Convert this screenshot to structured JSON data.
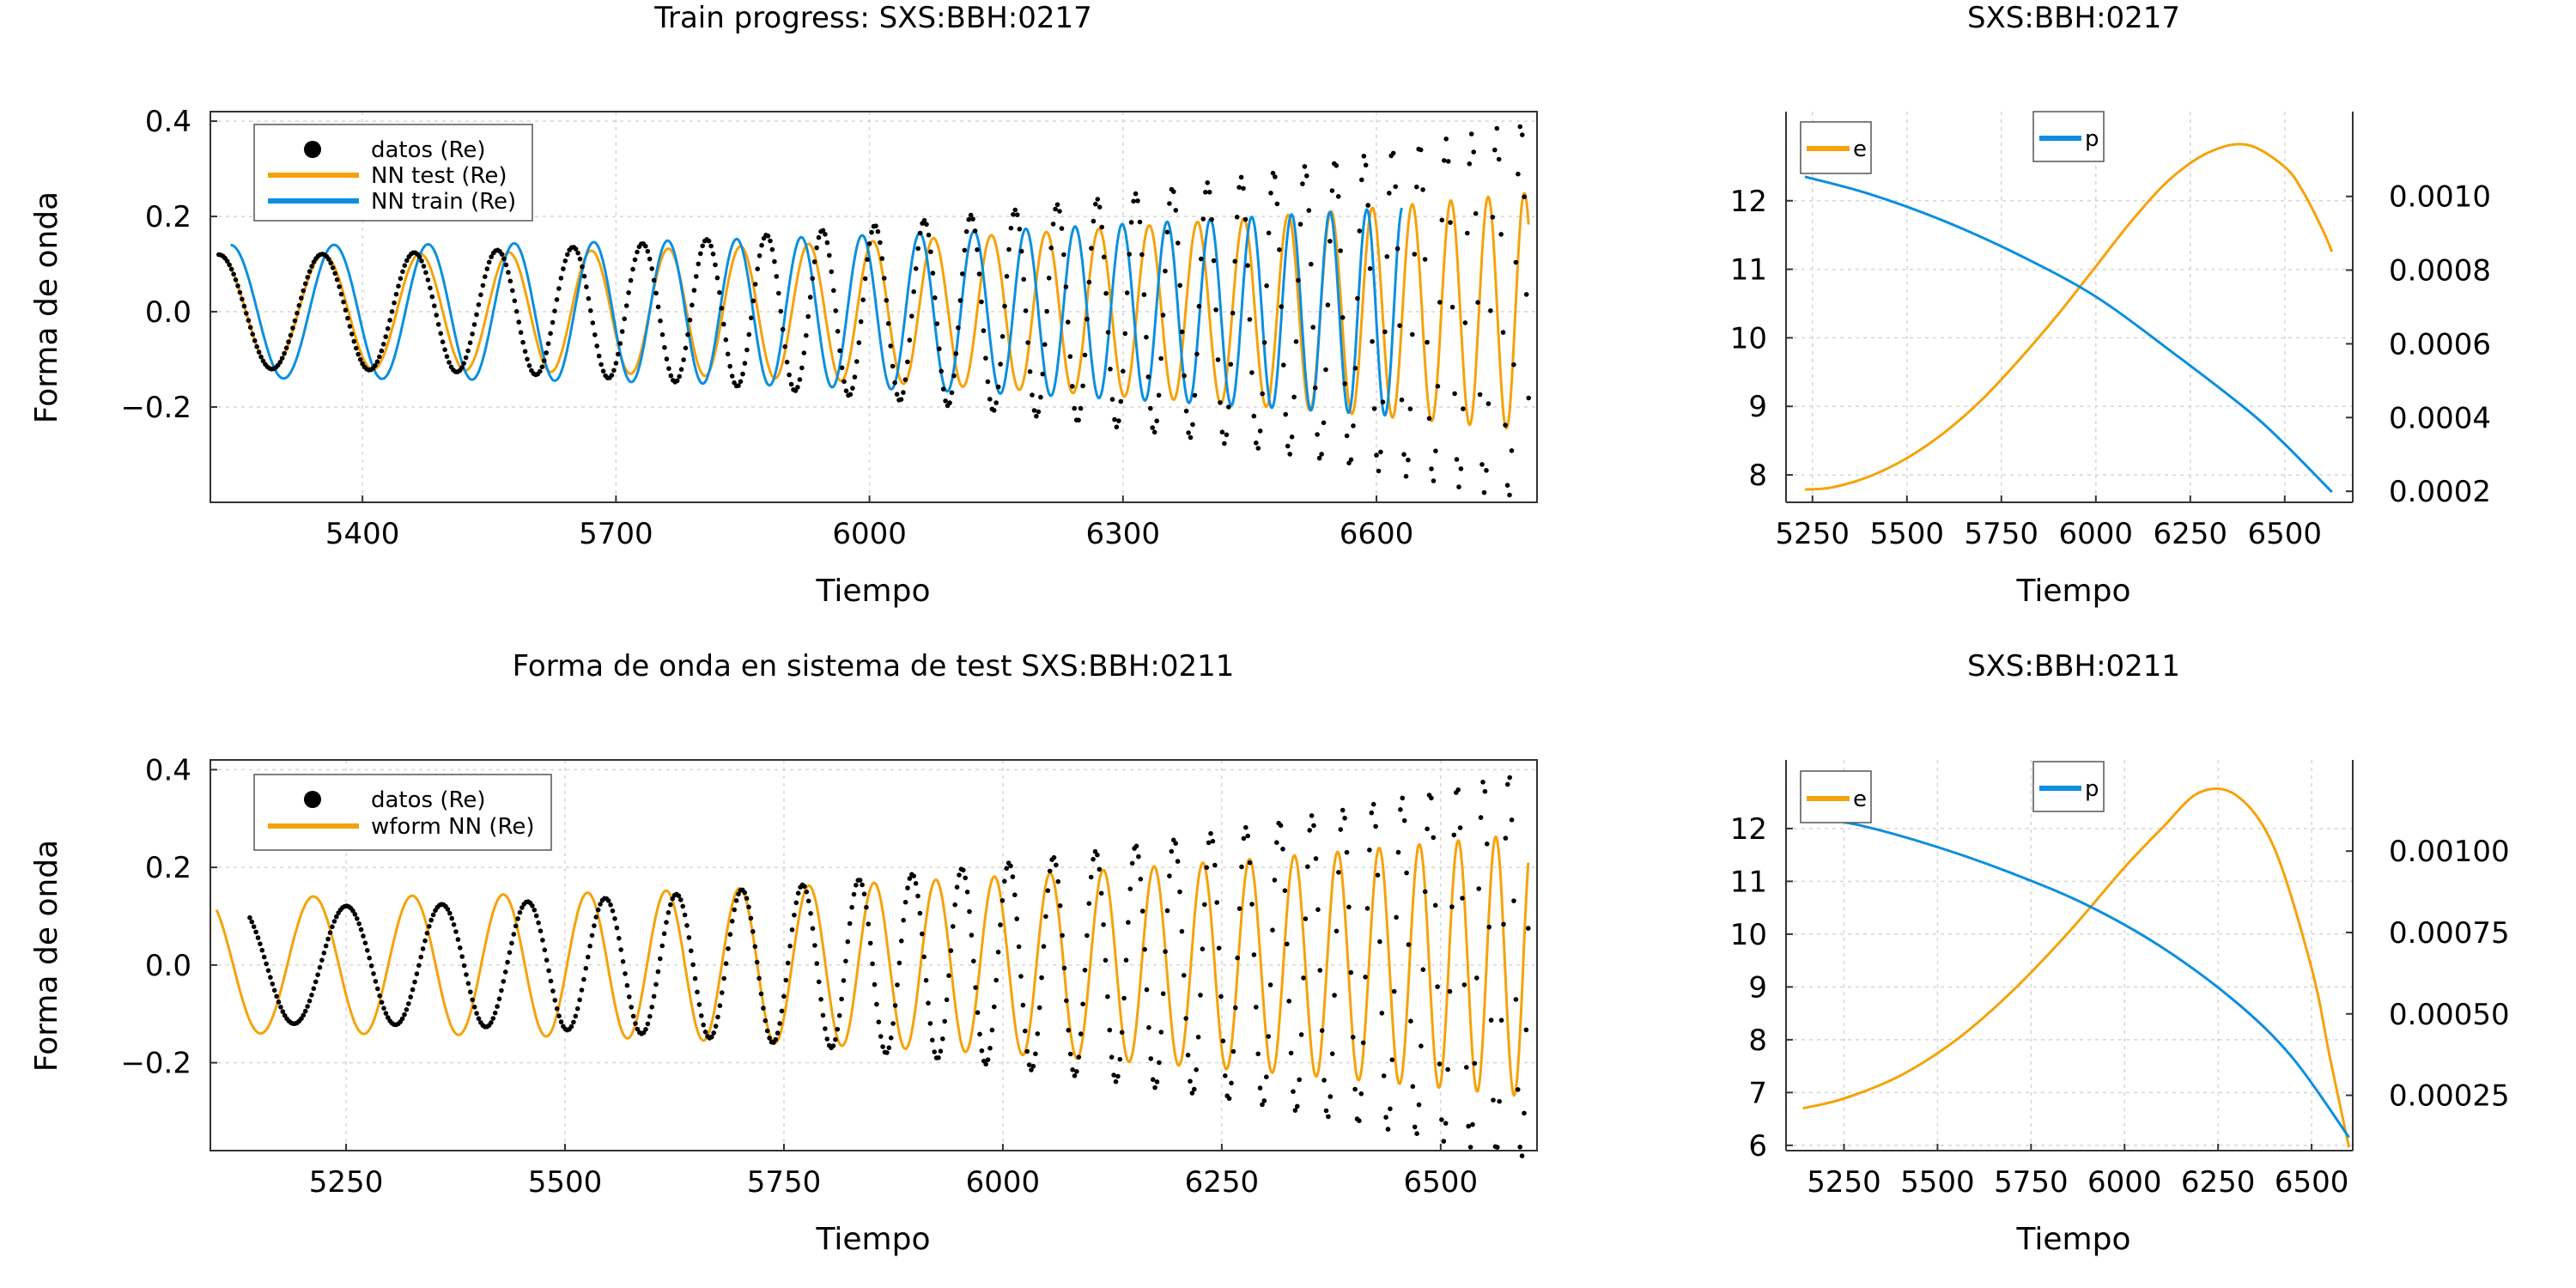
{
  "colors": {
    "datos": "#000000",
    "nn_test": "#f5a20a",
    "nn_train": "#0c8fde",
    "e": "#f5a20a",
    "p": "#0c8fde"
  },
  "chart_data": [
    {
      "type": "line",
      "title": "Train progress: SXS:BBH:0217",
      "xlabel": "Tiempo",
      "ylabel": "Forma de onda",
      "xlim": [
        5220,
        6790
      ],
      "ylim": [
        -0.4,
        0.42
      ],
      "xticks": [
        5400,
        5700,
        6000,
        6300,
        6600
      ],
      "xtick_labels": [
        "5400",
        "5700",
        "6000",
        "6300",
        "6600"
      ],
      "yticks": [
        -0.2,
        0.0,
        0.2,
        0.4
      ],
      "ytick_labels": [
        "−0.2",
        "0.0",
        "0.2",
        "0.4"
      ],
      "grid": true,
      "legend": "top-left",
      "series": [
        {
          "name": "datos (Re)",
          "kind": "scatter",
          "x_range": [
            5230,
            6780
          ],
          "phase0": 0.5,
          "period_start": 130,
          "period_end": 28,
          "amp_start": 0.12,
          "amp_end": 0.4,
          "shift": 0
        },
        {
          "name": "NN test (Re)",
          "kind": "line",
          "x_range": [
            5230,
            6780
          ],
          "phase0": 0.5,
          "period_start": 130,
          "period_end": 42,
          "amp_start": 0.12,
          "amp_end": 0.25,
          "shift": 0
        },
        {
          "name": "NN train (Re)",
          "kind": "line",
          "x_range": [
            5230,
            6630
          ],
          "phase0": 0.5,
          "period_start": 130,
          "period_end": 42,
          "amp_start": 0.14,
          "amp_end": 0.22,
          "shift": 14
        }
      ]
    },
    {
      "type": "line",
      "title": "SXS:BBH:0217",
      "xlabel": "Tiempo",
      "ylabel": "",
      "xlim": [
        5180,
        6680
      ],
      "ylim": [
        7.6,
        13.3
      ],
      "y2lim": [
        0.00017,
        0.00123
      ],
      "xticks": [
        5250,
        5500,
        5750,
        6000,
        6250,
        6500
      ],
      "xtick_labels": [
        "5250",
        "5500",
        "5750",
        "6000",
        "6250",
        "6500"
      ],
      "yticks": [
        8,
        9,
        10,
        11,
        12
      ],
      "ytick_labels": [
        "8",
        "9",
        "10",
        "11",
        "12"
      ],
      "y2ticks": [
        0.0002,
        0.0004,
        0.0006,
        0.0008,
        0.001
      ],
      "y2tick_labels": [
        "0.0002",
        "0.0004",
        "0.0006",
        "0.0008",
        "0.0010"
      ],
      "grid": true,
      "legend": "top-left and top-center",
      "series": [
        {
          "name": "e",
          "axis": "right",
          "x": [
            5230,
            5300,
            5400,
            5500,
            5600,
            5700,
            5800,
            5900,
            6000,
            6100,
            6200,
            6300,
            6400,
            6500,
            6550,
            6600,
            6625
          ],
          "y": [
            0.000205,
            0.00021,
            0.00024,
            0.00029,
            0.00036,
            0.00045,
            0.00056,
            0.00068,
            0.00081,
            0.00094,
            0.00105,
            0.00112,
            0.00114,
            0.00108,
            0.00101,
            0.00091,
            0.00085
          ]
        },
        {
          "name": "p",
          "axis": "left",
          "x": [
            5230,
            5400,
            5600,
            5800,
            6000,
            6200,
            6400,
            6500,
            6625
          ],
          "y": [
            12.35,
            12.1,
            11.7,
            11.2,
            10.6,
            9.8,
            8.95,
            8.45,
            7.75
          ]
        }
      ]
    },
    {
      "type": "line",
      "title": "Forma de onda en sistema de test SXS:BBH:0211",
      "xlabel": "Tiempo",
      "ylabel": "Forma de onda",
      "xlim": [
        5095,
        6610
      ],
      "ylim": [
        -0.38,
        0.42
      ],
      "xticks": [
        5250,
        5500,
        5750,
        6000,
        6250,
        6500
      ],
      "xtick_labels": [
        "5250",
        "5500",
        "5750",
        "6000",
        "6250",
        "6500"
      ],
      "yticks": [
        -0.2,
        0.0,
        0.2,
        0.4
      ],
      "ytick_labels": [
        "−0.2",
        "0.0",
        "0.2",
        "0.4"
      ],
      "grid": true,
      "legend": "top-left",
      "series": [
        {
          "name": "datos (Re)",
          "kind": "scatter",
          "x_range": [
            5140,
            6600
          ],
          "phase0": 0.6,
          "period_start": 130,
          "period_end": 28,
          "amp_start": 0.12,
          "amp_end": 0.4,
          "shift": 0
        },
        {
          "name": "wform NN (Re)",
          "kind": "line",
          "x_range": [
            5140,
            6600
          ],
          "phase0": 0.6,
          "period_start": 125,
          "period_end": 40,
          "amp_start": 0.14,
          "amp_end": 0.27,
          "shift": -38
        }
      ]
    },
    {
      "type": "line",
      "title": "SXS:BBH:0211",
      "xlabel": "Tiempo",
      "ylabel": "",
      "xlim": [
        5095,
        6610
      ],
      "ylim": [
        5.9,
        13.3
      ],
      "y2lim": [
        8e-05,
        0.00128
      ],
      "xticks": [
        5250,
        5500,
        5750,
        6000,
        6250,
        6500
      ],
      "xtick_labels": [
        "5250",
        "5500",
        "5750",
        "6000",
        "6250",
        "6500"
      ],
      "yticks": [
        6,
        7,
        8,
        9,
        10,
        11,
        12
      ],
      "ytick_labels": [
        "6",
        "7",
        "8",
        "9",
        "10",
        "11",
        "12"
      ],
      "y2ticks": [
        0.00025,
        0.0005,
        0.00075,
        0.001
      ],
      "y2tick_labels": [
        "0.00025",
        "0.00050",
        "0.00075",
        "0.00100"
      ],
      "grid": true,
      "legend": "top-left and top-center",
      "series": [
        {
          "name": "e",
          "axis": "right",
          "x": [
            5140,
            5250,
            5400,
            5550,
            5700,
            5850,
            6000,
            6100,
            6200,
            6300,
            6400,
            6500,
            6550,
            6600
          ],
          "y": [
            0.00021,
            0.00024,
            0.00031,
            0.00042,
            0.00057,
            0.00075,
            0.00095,
            0.00107,
            0.00118,
            0.00117,
            0.00101,
            0.00064,
            0.00036,
            9e-05
          ]
        },
        {
          "name": "p",
          "axis": "left",
          "x": [
            5140,
            5300,
            5500,
            5700,
            5900,
            6100,
            6300,
            6450,
            6600
          ],
          "y": [
            12.25,
            12.05,
            11.65,
            11.15,
            10.55,
            9.75,
            8.7,
            7.65,
            6.15
          ]
        }
      ]
    }
  ]
}
